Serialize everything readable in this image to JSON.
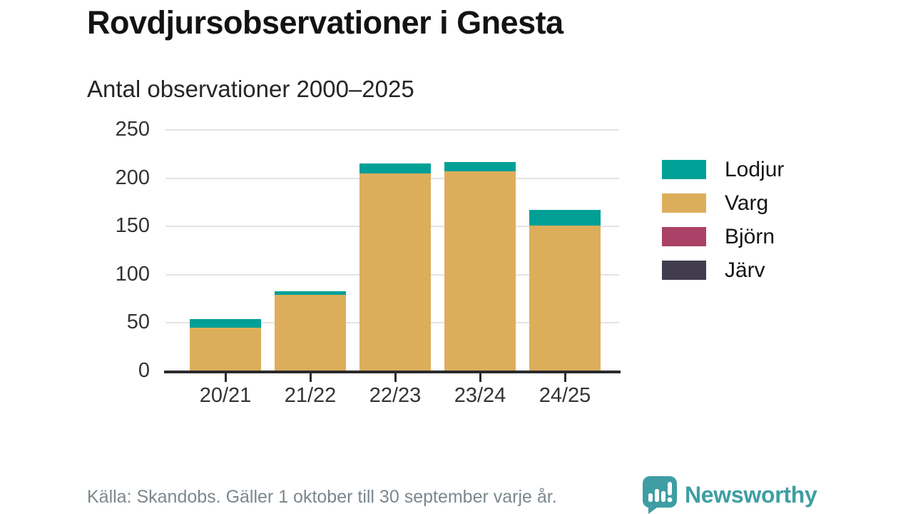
{
  "title": "Rovdjursobservationer i Gnesta",
  "subtitle": "Antal observationer 2000–2025",
  "source": "Källa: Skandobs. Gäller 1 oktober till 30 september varje år.",
  "brand": {
    "name": "Newsworthy",
    "color": "#3e9ea3"
  },
  "chart_data": {
    "type": "bar",
    "stacked": true,
    "title": "Rovdjursobservationer i Gnesta",
    "subtitle": "Antal observationer 2000–2025",
    "categories": [
      "20/21",
      "21/22",
      "22/23",
      "23/24",
      "24/25"
    ],
    "series": [
      {
        "name": "Lodjur",
        "color": "#00a096",
        "values": [
          9,
          4,
          10,
          10,
          16
        ]
      },
      {
        "name": "Varg",
        "color": "#dcae5b",
        "values": [
          45,
          79,
          205,
          207,
          150
        ]
      },
      {
        "name": "Björn",
        "color": "#ab4166",
        "values": [
          0,
          0,
          0,
          0,
          1
        ]
      },
      {
        "name": "Järv",
        "color": "#413d4f",
        "values": [
          0,
          0,
          0,
          0,
          0
        ]
      }
    ],
    "stack_order_bottom_to_top": [
      "Järv",
      "Björn",
      "Varg",
      "Lodjur"
    ],
    "totals": [
      54,
      83,
      215,
      217,
      167
    ],
    "xlabel": "",
    "ylabel": "",
    "ylim": [
      0,
      250
    ],
    "yticks": [
      0,
      50,
      100,
      150,
      200,
      250
    ],
    "grid": true,
    "legend_position": "right"
  }
}
